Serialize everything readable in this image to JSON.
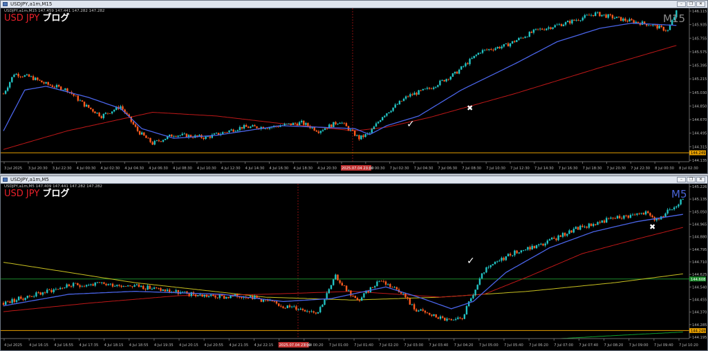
{
  "windows": [
    {
      "id": "m15",
      "window_title": "USDJPY,a1m,M15",
      "header_line": "USDJPY,a1m,M15  147.459 147.441 147.282 147.282",
      "brand_pair": "USD JPY",
      "brand_blog": "ブログ",
      "timeframe": "M15",
      "timeframe_color": "#8c8c8c",
      "check_mark": "✓",
      "cross_mark": "✖",
      "buttons": [
        "–",
        "❐",
        "✕"
      ]
    },
    {
      "id": "m5",
      "window_title": "USDJPY,a1m,M5",
      "header_line": "USDJPY,a1m,M5  147.409 147.441 147.282 147.282",
      "brand_pair": "USD JPY",
      "brand_blog": "ブログ",
      "timeframe": "M5",
      "timeframe_color": "#4a64d8",
      "check_mark": "✓",
      "cross_mark": "✖",
      "buttons": [
        "–",
        "❐",
        "✕"
      ]
    }
  ],
  "colors": {
    "background": "#000000",
    "bull": "#22c4c4",
    "bear": "#ff5a1e",
    "ma_fast": "#4a64e8",
    "ma_slow": "#c01818",
    "ma_long": "#c8c020",
    "ma_extra": "#10a030",
    "support_line": "#e8a000",
    "h_line_green": "#1c8a2c",
    "separator": "#8a1010",
    "axis_text": "#b8b8b8",
    "date_badge": "#c03030"
  },
  "chart_data": [
    {
      "type": "candlestick",
      "symbol": "USDJPY",
      "timeframe": "M15",
      "ylim": [
        144.135,
        146.2
      ],
      "y_ticks": [
        "146.115",
        "145.935",
        "145.755",
        "145.575",
        "145.395",
        "145.215",
        "145.030",
        "144.850",
        "144.670",
        "144.495",
        "144.315",
        "144.135"
      ],
      "x_ticks": [
        "3 Jul 2025",
        "3 Jul 20:30",
        "3 Jul 22:30",
        "4 Jul 00:30",
        "4 Jul 02:30",
        "4 Jul 04:30",
        "4 Jul 06:30",
        "4 Jul 08:30",
        "4 Jul 10:30",
        "4 Jul 12:30",
        "4 Jul 14:30",
        "4 Jul 16:30",
        "4 Jul 18:30",
        "4 Jul 20:30",
        "2025.07.04 23:00",
        "7 Jul 00:30",
        "7 Jul 02:30",
        "7 Jul 04:30",
        "7 Jul 06:30",
        "7 Jul 08:30",
        "7 Jul 10:30",
        "7 Jul 12:30",
        "7 Jul 14:30",
        "7 Jul 16:30",
        "7 Jul 18:30",
        "7 Jul 20:30",
        "7 Jul 22:30",
        "8 Jul 00:30",
        "8 Jul 02:30"
      ],
      "highlighted_x_tick": "2025.07.04 23:00",
      "current_price_label": "144.249",
      "support_level": 144.255,
      "anchors": [
        [
          0,
          145.05
        ],
        [
          5,
          145.32
        ],
        [
          13,
          145.27
        ],
        [
          20,
          145.18
        ],
        [
          30,
          145.1
        ],
        [
          38,
          144.9
        ],
        [
          46,
          144.75
        ],
        [
          55,
          144.88
        ],
        [
          63,
          144.55
        ],
        [
          70,
          144.38
        ],
        [
          80,
          144.5
        ],
        [
          95,
          144.46
        ],
        [
          112,
          144.6
        ],
        [
          125,
          144.6
        ],
        [
          140,
          144.66
        ],
        [
          148,
          144.55
        ],
        [
          158,
          144.68
        ],
        [
          167,
          144.45
        ],
        [
          172,
          144.52
        ],
        [
          178,
          144.75
        ],
        [
          190,
          145.02
        ],
        [
          200,
          145.12
        ],
        [
          212,
          145.32
        ],
        [
          224,
          145.62
        ],
        [
          236,
          145.7
        ],
        [
          250,
          145.9
        ],
        [
          264,
          146.0
        ],
        [
          278,
          146.13
        ],
        [
          292,
          146.04
        ],
        [
          304,
          145.98
        ],
        [
          312,
          145.9
        ],
        [
          316,
          146.15
        ]
      ],
      "ma_fast_anchors": [
        [
          0,
          144.55
        ],
        [
          10,
          145.1
        ],
        [
          20,
          145.15
        ],
        [
          40,
          145.0
        ],
        [
          55,
          144.85
        ],
        [
          65,
          144.58
        ],
        [
          80,
          144.45
        ],
        [
          100,
          144.49
        ],
        [
          130,
          144.62
        ],
        [
          165,
          144.58
        ],
        [
          172,
          144.5
        ],
        [
          180,
          144.62
        ],
        [
          195,
          144.75
        ],
        [
          215,
          145.1
        ],
        [
          240,
          145.45
        ],
        [
          260,
          145.75
        ],
        [
          280,
          145.93
        ],
        [
          295,
          146.0
        ],
        [
          316,
          145.97
        ]
      ],
      "ma_slow_anchors": [
        [
          0,
          144.3
        ],
        [
          30,
          144.55
        ],
        [
          70,
          144.8
        ],
        [
          100,
          144.75
        ],
        [
          130,
          144.65
        ],
        [
          165,
          144.55
        ],
        [
          180,
          144.6
        ],
        [
          200,
          144.73
        ],
        [
          240,
          145.05
        ],
        [
          280,
          145.4
        ],
        [
          316,
          145.7
        ]
      ]
    },
    {
      "type": "candlestick",
      "symbol": "USDJPY",
      "timeframe": "M5",
      "ylim": [
        144.195,
        145.26
      ],
      "y_ticks": [
        "145.226",
        "145.135",
        "145.050",
        "144.965",
        "144.880",
        "144.795",
        "144.710",
        "144.625",
        "144.540",
        "144.455",
        "144.370",
        "144.285",
        "144.195"
      ],
      "x_ticks": [
        "4 Jul 2025",
        "4 Jul 16:15",
        "4 Jul 16:55",
        "4 Jul 17:35",
        "4 Jul 18:15",
        "4 Jul 18:55",
        "4 Jul 19:35",
        "4 Jul 20:15",
        "4 Jul 20:55",
        "4 Jul 21:35",
        "4 Jul 22:15",
        "2025.07.04 23:00",
        "7 Jul 00:20",
        "7 Jul 01:00",
        "7 Jul 01:40",
        "7 Jul 02:20",
        "7 Jul 03:00",
        "7 Jul 03:40",
        "7 Jul 04:20",
        "7 Jul 05:00",
        "7 Jul 05:40",
        "7 Jul 06:20",
        "7 Jul 07:00",
        "7 Jul 07:40",
        "7 Jul 08:20",
        "7 Jul 09:00",
        "7 Jul 09:40",
        "7 Jul 10:20"
      ],
      "highlighted_x_tick": "2025.07.04 23:00",
      "current_price_label": "144.249",
      "green_line_label": "144.608",
      "support_level": 144.25,
      "green_level": 144.605,
      "anchors": [
        [
          0,
          144.44
        ],
        [
          15,
          144.5
        ],
        [
          30,
          144.56
        ],
        [
          45,
          144.57
        ],
        [
          60,
          144.56
        ],
        [
          85,
          144.5
        ],
        [
          100,
          144.48
        ],
        [
          112,
          144.49
        ],
        [
          128,
          144.42
        ],
        [
          136,
          144.4
        ],
        [
          144,
          144.38
        ],
        [
          152,
          144.62
        ],
        [
          162,
          144.45
        ],
        [
          172,
          144.6
        ],
        [
          182,
          144.52
        ],
        [
          188,
          144.4
        ],
        [
          197,
          144.35
        ],
        [
          206,
          144.31
        ],
        [
          210,
          144.34
        ],
        [
          220,
          144.66
        ],
        [
          232,
          144.78
        ],
        [
          246,
          144.84
        ],
        [
          262,
          144.95
        ],
        [
          278,
          145.02
        ],
        [
          294,
          145.06
        ],
        [
          300,
          145.0
        ],
        [
          304,
          145.08
        ],
        [
          311,
          145.15
        ]
      ],
      "ma_fast_anchors": [
        [
          0,
          144.42
        ],
        [
          30,
          144.5
        ],
        [
          60,
          144.52
        ],
        [
          100,
          144.5
        ],
        [
          128,
          144.45
        ],
        [
          150,
          144.47
        ],
        [
          175,
          144.55
        ],
        [
          190,
          144.48
        ],
        [
          205,
          144.4
        ],
        [
          215,
          144.45
        ],
        [
          230,
          144.65
        ],
        [
          250,
          144.82
        ],
        [
          270,
          144.93
        ],
        [
          290,
          145.0
        ],
        [
          311,
          145.05
        ]
      ],
      "ma_slow_anchors": [
        [
          0,
          144.38
        ],
        [
          40,
          144.44
        ],
        [
          80,
          144.49
        ],
        [
          120,
          144.5
        ],
        [
          160,
          144.52
        ],
        [
          200,
          144.48
        ],
        [
          220,
          144.5
        ],
        [
          240,
          144.62
        ],
        [
          265,
          144.78
        ],
        [
          290,
          144.88
        ],
        [
          311,
          144.96
        ]
      ],
      "ma_long_anchors": [
        [
          0,
          144.72
        ],
        [
          60,
          144.58
        ],
        [
          120,
          144.48
        ],
        [
          160,
          144.46
        ],
        [
          200,
          144.48
        ],
        [
          240,
          144.52
        ],
        [
          280,
          144.58
        ],
        [
          311,
          144.64
        ]
      ],
      "ma_extra_anchors": [
        [
          255,
          144.195
        ],
        [
          285,
          144.22
        ],
        [
          311,
          144.24
        ]
      ]
    }
  ]
}
